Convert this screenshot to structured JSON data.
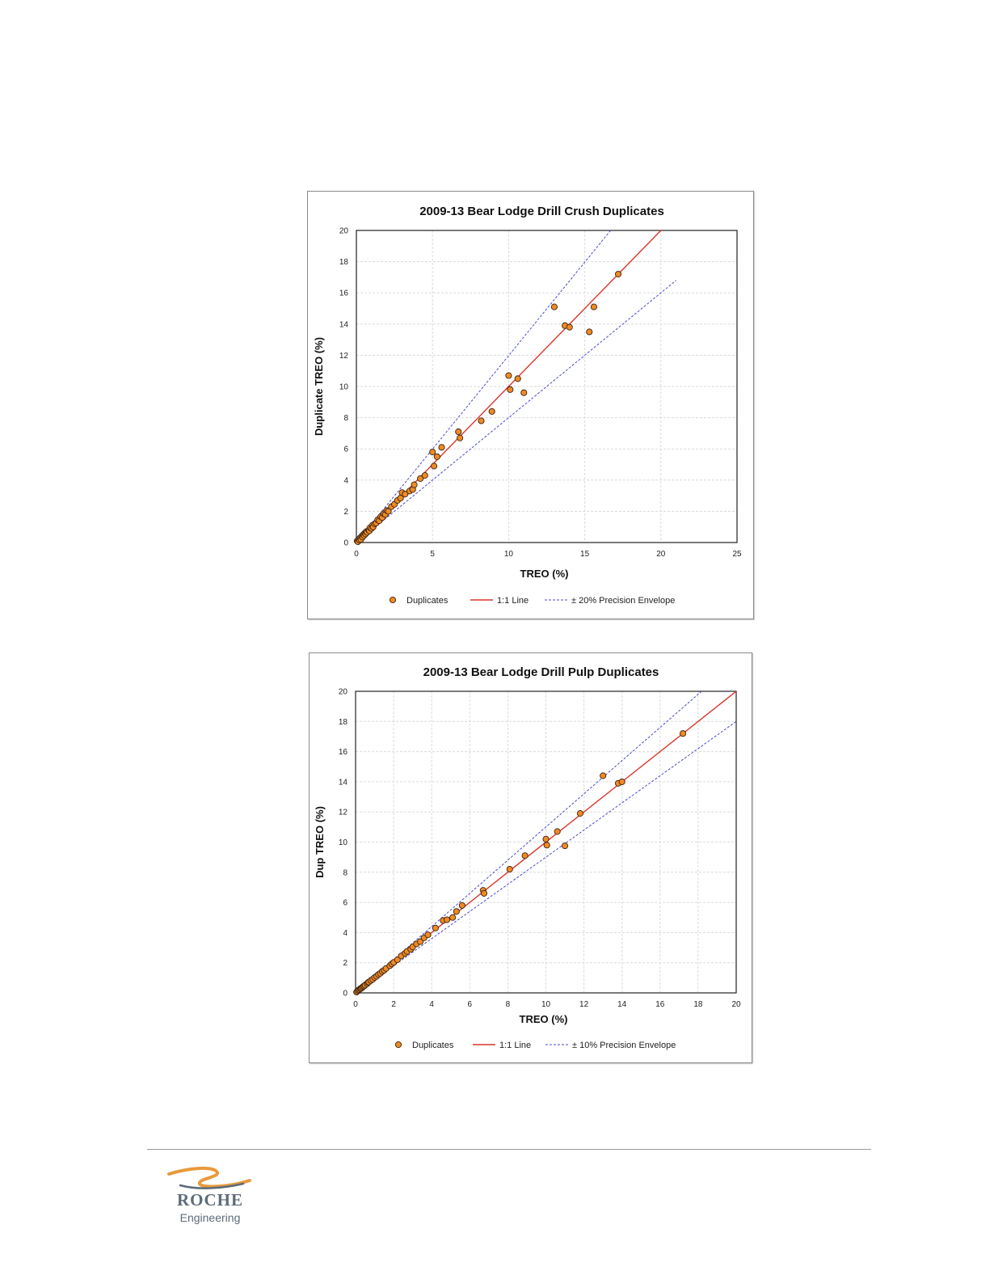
{
  "chart_data": [
    {
      "type": "scatter",
      "title": "2009-13 Bear Lodge Drill Crush Duplicates",
      "xlabel": "TREO (%)",
      "ylabel": "Duplicate TREO (%)",
      "xlim": [
        0,
        25
      ],
      "ylim": [
        0,
        20
      ],
      "xticks": [
        0,
        5,
        10,
        15,
        20,
        25
      ],
      "yticks": [
        0,
        2,
        4,
        6,
        8,
        10,
        12,
        14,
        16,
        18,
        20
      ],
      "grid": true,
      "legend": "bottom",
      "series": [
        {
          "name": "Duplicates",
          "kind": "points",
          "color": "#f08a24",
          "points": [
            [
              0.05,
              0.1
            ],
            [
              0.1,
              0.05
            ],
            [
              0.15,
              0.2
            ],
            [
              0.2,
              0.15
            ],
            [
              0.25,
              0.3
            ],
            [
              0.3,
              0.2
            ],
            [
              0.35,
              0.4
            ],
            [
              0.4,
              0.35
            ],
            [
              0.45,
              0.5
            ],
            [
              0.5,
              0.45
            ],
            [
              0.55,
              0.6
            ],
            [
              0.6,
              0.55
            ],
            [
              0.65,
              0.7
            ],
            [
              0.7,
              0.65
            ],
            [
              0.8,
              0.8
            ],
            [
              0.85,
              0.75
            ],
            [
              0.9,
              0.95
            ],
            [
              1.0,
              0.9
            ],
            [
              1.05,
              1.1
            ],
            [
              1.1,
              1.0
            ],
            [
              1.2,
              1.2
            ],
            [
              1.3,
              1.25
            ],
            [
              1.4,
              1.45
            ],
            [
              1.5,
              1.4
            ],
            [
              1.6,
              1.65
            ],
            [
              1.7,
              1.6
            ],
            [
              1.8,
              1.85
            ],
            [
              1.9,
              1.8
            ],
            [
              2.0,
              2.05
            ],
            [
              2.1,
              2.0
            ],
            [
              2.3,
              2.3
            ],
            [
              2.5,
              2.45
            ],
            [
              2.7,
              2.7
            ],
            [
              2.9,
              2.85
            ],
            [
              3.0,
              3.2
            ],
            [
              3.2,
              3.1
            ],
            [
              3.5,
              3.3
            ],
            [
              3.7,
              3.4
            ],
            [
              3.8,
              3.7
            ],
            [
              4.2,
              4.1
            ],
            [
              4.5,
              4.3
            ],
            [
              5.0,
              5.8
            ],
            [
              5.1,
              4.9
            ],
            [
              5.3,
              5.5
            ],
            [
              5.6,
              6.1
            ],
            [
              6.7,
              7.1
            ],
            [
              6.8,
              6.7
            ],
            [
              8.2,
              7.8
            ],
            [
              8.9,
              8.4
            ],
            [
              10.0,
              10.7
            ],
            [
              10.1,
              9.8
            ],
            [
              10.6,
              10.5
            ],
            [
              11.0,
              9.6
            ],
            [
              13.0,
              15.1
            ],
            [
              13.7,
              13.9
            ],
            [
              14.0,
              13.8
            ],
            [
              15.3,
              13.5
            ],
            [
              15.6,
              15.1
            ],
            [
              17.2,
              17.2
            ]
          ]
        },
        {
          "name": "1:1 Line",
          "kind": "line",
          "color": "#d9362a",
          "points": [
            [
              0,
              0
            ],
            [
              20,
              20
            ]
          ]
        },
        {
          "name": "± 20% Precision Envelope",
          "kind": "dashed",
          "color": "#4a4ad0",
          "points": [
            [
              0,
              0
            ],
            [
              16.7,
              20
            ]
          ]
        },
        {
          "name": "",
          "kind": "dashed",
          "color": "#4a4ad0",
          "points": [
            [
              0,
              0
            ],
            [
              21,
              16.8
            ]
          ]
        }
      ]
    },
    {
      "type": "scatter",
      "title": "2009-13 Bear Lodge Drill Pulp Duplicates",
      "xlabel": "TREO (%)",
      "ylabel": "Dup TREO (%)",
      "xlim": [
        0,
        20
      ],
      "ylim": [
        0,
        20
      ],
      "xticks": [
        0,
        2,
        4,
        6,
        8,
        10,
        12,
        14,
        16,
        18,
        20
      ],
      "yticks": [
        0,
        2,
        4,
        6,
        8,
        10,
        12,
        14,
        16,
        18,
        20
      ],
      "grid": true,
      "legend": "bottom",
      "series": [
        {
          "name": "Duplicates",
          "kind": "points",
          "color": "#f08a24",
          "points": [
            [
              0.05,
              0.05
            ],
            [
              0.1,
              0.12
            ],
            [
              0.15,
              0.18
            ],
            [
              0.2,
              0.22
            ],
            [
              0.25,
              0.28
            ],
            [
              0.3,
              0.3
            ],
            [
              0.35,
              0.36
            ],
            [
              0.4,
              0.42
            ],
            [
              0.45,
              0.46
            ],
            [
              0.5,
              0.52
            ],
            [
              0.6,
              0.6
            ],
            [
              0.65,
              0.68
            ],
            [
              0.7,
              0.72
            ],
            [
              0.8,
              0.82
            ],
            [
              0.9,
              0.9
            ],
            [
              1.0,
              1.02
            ],
            [
              1.1,
              1.1
            ],
            [
              1.2,
              1.22
            ],
            [
              1.3,
              1.3
            ],
            [
              1.4,
              1.42
            ],
            [
              1.5,
              1.5
            ],
            [
              1.6,
              1.62
            ],
            [
              1.8,
              1.8
            ],
            [
              1.9,
              1.92
            ],
            [
              2.0,
              2.02
            ],
            [
              2.2,
              2.2
            ],
            [
              2.4,
              2.45
            ],
            [
              2.6,
              2.62
            ],
            [
              2.7,
              2.75
            ],
            [
              2.9,
              2.9
            ],
            [
              3.0,
              3.05
            ],
            [
              3.2,
              3.25
            ],
            [
              3.4,
              3.4
            ],
            [
              3.6,
              3.65
            ],
            [
              3.8,
              3.85
            ],
            [
              4.2,
              4.3
            ],
            [
              4.6,
              4.8
            ],
            [
              4.8,
              4.85
            ],
            [
              5.1,
              5.0
            ],
            [
              5.3,
              5.4
            ],
            [
              5.6,
              5.8
            ],
            [
              6.7,
              6.8
            ],
            [
              6.75,
              6.6
            ],
            [
              8.1,
              8.2
            ],
            [
              8.9,
              9.1
            ],
            [
              10.0,
              10.2
            ],
            [
              10.05,
              9.8
            ],
            [
              10.6,
              10.7
            ],
            [
              11.0,
              9.75
            ],
            [
              11.8,
              11.9
            ],
            [
              13.0,
              14.4
            ],
            [
              13.8,
              13.9
            ],
            [
              14.0,
              14.0
            ],
            [
              17.2,
              17.2
            ]
          ]
        },
        {
          "name": "1:1 Line",
          "kind": "line",
          "color": "#d9362a",
          "points": [
            [
              0,
              0
            ],
            [
              20,
              20
            ]
          ]
        },
        {
          "name": "± 10% Precision Envelope",
          "kind": "dashed",
          "color": "#4a4ad0",
          "points": [
            [
              0,
              0
            ],
            [
              18.18,
              20
            ]
          ]
        },
        {
          "name": "",
          "kind": "dashed",
          "color": "#4a4ad0",
          "points": [
            [
              0,
              0
            ],
            [
              20,
              18
            ]
          ]
        }
      ]
    }
  ],
  "footer": {
    "logo_name": "ROCHE",
    "logo_sub": "Engineering",
    "logo_colors": [
      "#e89a3c",
      "#5d6b7a"
    ]
  }
}
